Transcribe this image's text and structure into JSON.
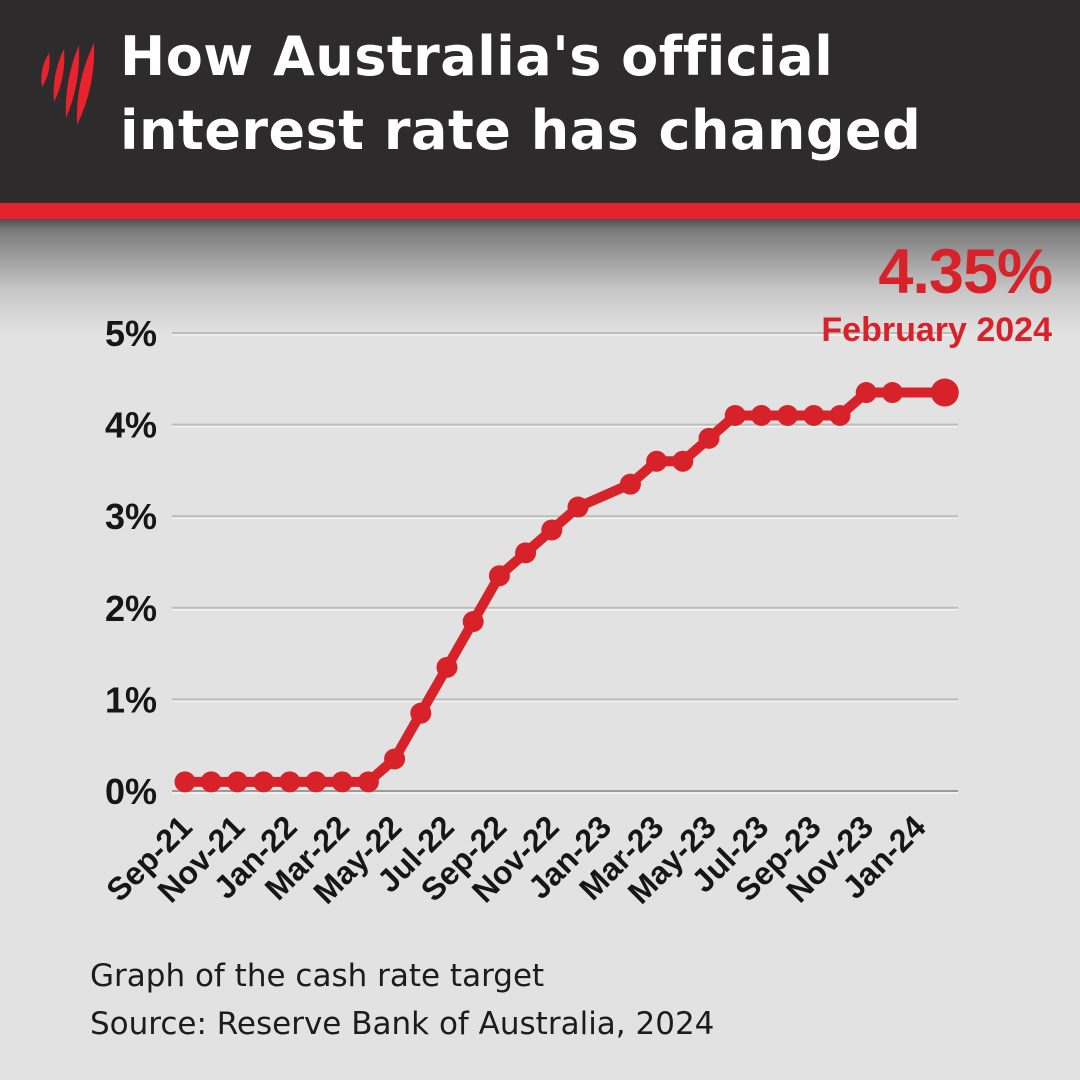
{
  "header": {
    "title_line1": "How Australia's official",
    "title_line2": "interest rate has changed",
    "logo": "sbs-mercury-logo"
  },
  "footer": {
    "caption": "Graph of the cash rate target",
    "source": "Source: Reserve Bank of Australia, 2024"
  },
  "colors": {
    "header_bg": "#2d2b2c",
    "stripe_red": "#e4222b",
    "accent_red": "#d7222a",
    "logo_red": "#e8232e",
    "chart_bg": "#e3e2e2",
    "gridline": "#bcbcbc",
    "baseline": "#9a9a9a",
    "text_black": "#161616"
  },
  "chart_data": {
    "type": "line",
    "title": "How Australia's official interest rate has changed",
    "xlabel": "",
    "ylabel": "",
    "ylim": [
      0,
      5
    ],
    "grid": true,
    "legend": false,
    "x_tick_step": 2,
    "x": [
      "Sep-21",
      "Oct-21",
      "Nov-21",
      "Dec-21",
      "Jan-22",
      "Feb-22",
      "Mar-22",
      "Apr-22",
      "May-22",
      "Jun-22",
      "Jul-22",
      "Aug-22",
      "Sep-22",
      "Oct-22",
      "Nov-22",
      "Dec-22",
      "Jan-23",
      "Feb-23",
      "Mar-23",
      "Apr-23",
      "May-23",
      "Jun-23",
      "Jul-23",
      "Aug-23",
      "Sep-23",
      "Oct-23",
      "Nov-23",
      "Dec-23",
      "Jan-24",
      "Feb-24"
    ],
    "values": [
      0.1,
      0.1,
      0.1,
      0.1,
      0.1,
      0.1,
      0.1,
      0.1,
      0.35,
      0.85,
      1.35,
      1.85,
      2.35,
      2.6,
      2.85,
      3.1,
      null,
      3.35,
      3.6,
      3.6,
      3.85,
      4.1,
      4.1,
      4.1,
      4.1,
      4.1,
      4.35,
      4.35,
      null,
      4.35
    ],
    "y_ticks": [
      {
        "label": "5%",
        "value": 5
      },
      {
        "label": "4%",
        "value": 4
      },
      {
        "label": "3%",
        "value": 3
      },
      {
        "label": "2%",
        "value": 2
      },
      {
        "label": "1%",
        "value": 1
      },
      {
        "label": "0%",
        "value": 0
      }
    ],
    "annotation": {
      "value": "4.35%",
      "date": "February 2024"
    }
  }
}
